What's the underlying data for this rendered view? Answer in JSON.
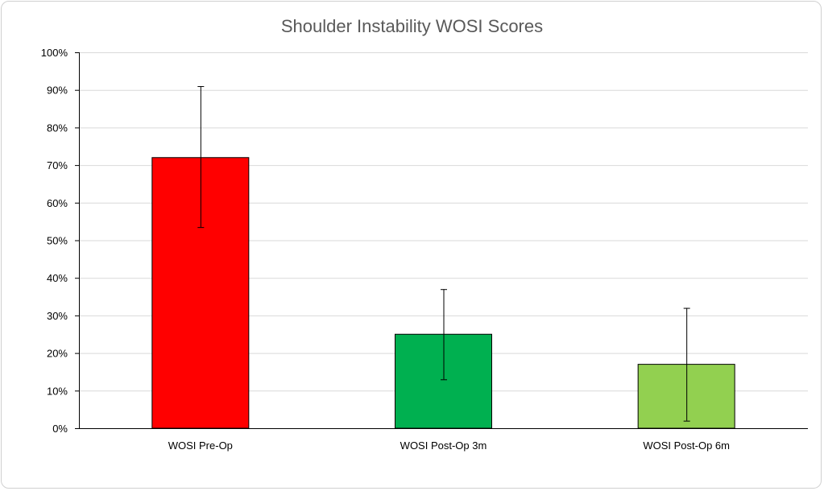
{
  "chart_data": {
    "type": "bar",
    "title": "Shoulder Instability WOSI Scores",
    "xlabel": "",
    "ylabel": "",
    "categories": [
      "WOSI Pre-Op",
      "WOSI Post-Op 3m",
      "WOSI Post-Op 6m"
    ],
    "values": [
      72,
      25,
      17
    ],
    "error_low": [
      53.5,
      13,
      2
    ],
    "error_high": [
      91,
      37,
      32
    ],
    "ylim": [
      0,
      100
    ],
    "yticks": [
      0,
      10,
      20,
      30,
      40,
      50,
      60,
      70,
      80,
      90,
      100
    ],
    "ytick_labels": [
      "0%",
      "10%",
      "20%",
      "30%",
      "40%",
      "50%",
      "60%",
      "70%",
      "80%",
      "90%",
      "100%"
    ],
    "grid": true,
    "legend": "none",
    "bar_colors": [
      "#ff0000",
      "#00b050",
      "#92d050"
    ],
    "gridline_color": "#d9d9d9",
    "axis_color": "#000000"
  }
}
